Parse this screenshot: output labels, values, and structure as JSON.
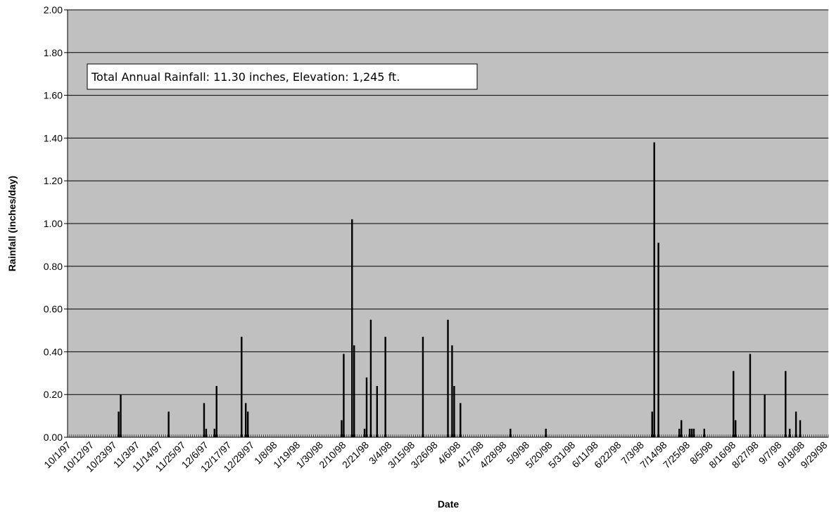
{
  "chart_data": {
    "type": "bar",
    "title": "",
    "xlabel": "Date",
    "ylabel": "Rainfall (inches/day)",
    "ylim": [
      0,
      2.0
    ],
    "y_ticks": [
      "0.00",
      "0.20",
      "0.40",
      "0.60",
      "0.80",
      "1.00",
      "1.20",
      "1.40",
      "1.60",
      "1.80",
      "2.00"
    ],
    "x_range": [
      "10/1/97",
      "9/30/98"
    ],
    "x_ticks": [
      "10/1/97",
      "10/12/97",
      "10/23/97",
      "11/3/97",
      "11/14/97",
      "11/25/97",
      "12/6/97",
      "12/17/97",
      "12/28/97",
      "1/8/98",
      "1/19/98",
      "1/30/98",
      "2/10/98",
      "2/21/98",
      "3/4/98",
      "3/15/98",
      "3/26/98",
      "4/6/98",
      "4/17/98",
      "4/28/98",
      "5/9/98",
      "5/20/98",
      "5/31/98",
      "6/11/98",
      "6/22/98",
      "7/3/98",
      "7/14/98",
      "7/25/98",
      "8/5/98",
      "8/16/98",
      "8/27/98",
      "9/7/98",
      "9/18/98",
      "9/29/98"
    ],
    "annotation": "Total Annual Rainfall: 11.30 inches,  Elevation: 1,245 ft.",
    "grid": true,
    "background": "#c0c0c0",
    "bar_color": "#000000",
    "series": [
      {
        "x": [
          "10/25/97",
          "10/26/97",
          "11/18/97",
          "12/5/97",
          "12/6/97",
          "12/10/97",
          "12/11/97",
          "12/23/97",
          "12/25/97",
          "12/26/97",
          "2/9/98",
          "2/10/98",
          "2/14/98",
          "2/15/98",
          "2/20/98",
          "2/21/98",
          "2/23/98",
          "2/26/98",
          "3/2/98",
          "3/20/98",
          "4/1/98",
          "4/3/98",
          "4/4/98",
          "4/7/98",
          "5/1/98",
          "5/18/98",
          "7/8/98",
          "7/9/98",
          "7/11/98",
          "7/21/98",
          "7/22/98",
          "7/26/98",
          "7/27/98",
          "7/28/98",
          "8/2/98",
          "8/16/98",
          "8/17/98",
          "8/24/98",
          "8/31/98",
          "9/10/98",
          "9/12/98",
          "9/15/98",
          "9/17/98"
        ],
        "values": [
          0.12,
          0.2,
          0.12,
          0.16,
          0.04,
          0.04,
          0.24,
          0.47,
          0.16,
          0.12,
          0.08,
          0.39,
          1.02,
          0.43,
          0.04,
          0.28,
          0.55,
          0.24,
          0.47,
          0.47,
          0.55,
          0.43,
          0.24,
          0.16,
          0.04,
          0.04,
          0.12,
          1.38,
          0.91,
          0.04,
          0.08,
          0.04,
          0.04,
          0.04,
          0.04,
          0.31,
          0.08,
          0.39,
          0.2,
          0.31,
          0.04,
          0.12,
          0.08
        ]
      }
    ]
  }
}
